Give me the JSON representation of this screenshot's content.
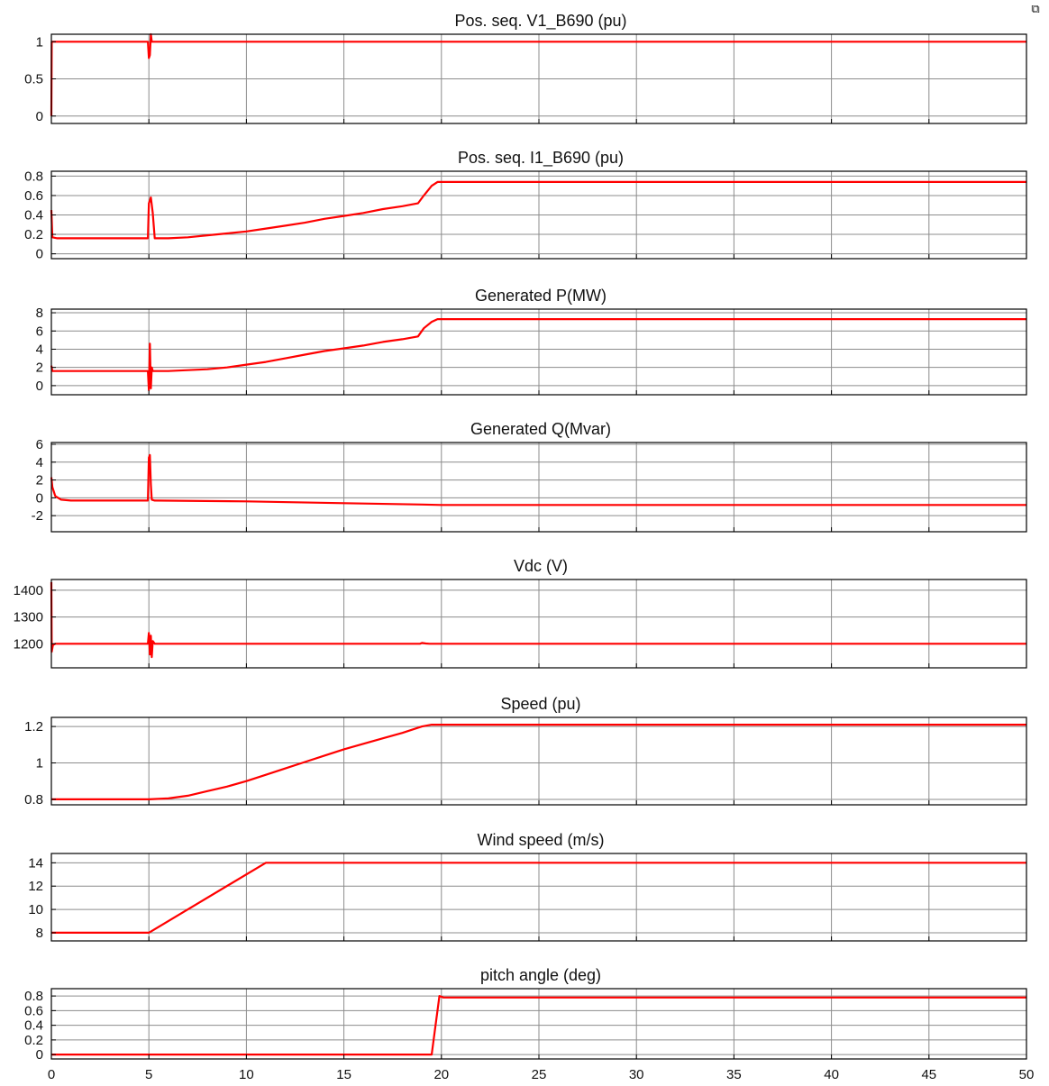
{
  "toolbar": {
    "corner_icon": "window-restore-icon"
  },
  "colors": {
    "trace": "#ff0000",
    "axis": "#000000",
    "grid": "#8c8c8c",
    "background": "#ffffff"
  },
  "chart_data": [
    {
      "type": "line",
      "title": "Pos. seq. V1_B690 (pu)",
      "xlim": [
        0,
        50
      ],
      "ylim": [
        -0.1,
        1.1
      ],
      "yticks": [
        0,
        0.5,
        1
      ],
      "ytick_labels": [
        "0",
        "0.5",
        "1"
      ],
      "xticks": [
        0,
        5,
        10,
        15,
        20,
        25,
        30,
        35,
        40,
        45,
        50
      ],
      "show_xtick_labels": false,
      "grid": true,
      "series": [
        {
          "x": [
            0,
            0.02,
            0.1,
            4.95,
            5.0,
            5.05,
            5.1,
            5.15,
            5.3,
            50
          ],
          "y": [
            0,
            1.0,
            1.0,
            1.0,
            0.78,
            0.82,
            1.1,
            1.0,
            1.0,
            1.0
          ]
        }
      ]
    },
    {
      "type": "line",
      "title": "Pos. seq. I1_B690 (pu)",
      "xlim": [
        0,
        50
      ],
      "ylim": [
        -0.05,
        0.85
      ],
      "yticks": [
        0,
        0.2,
        0.4,
        0.6,
        0.8
      ],
      "ytick_labels": [
        "0",
        "0.2",
        "0.4",
        "0.6",
        "0.8"
      ],
      "xticks": [
        0,
        5,
        10,
        15,
        20,
        25,
        30,
        35,
        40,
        45,
        50
      ],
      "show_xtick_labels": false,
      "grid": true,
      "series": [
        {
          "x": [
            0,
            0.05,
            0.3,
            4.95,
            5.0,
            5.1,
            5.2,
            5.3,
            6,
            7,
            8,
            9,
            10,
            11,
            12,
            13,
            14,
            15,
            16,
            17,
            18,
            18.8,
            19.1,
            19.5,
            19.8,
            20,
            50
          ],
          "y": [
            0.45,
            0.17,
            0.16,
            0.16,
            0.52,
            0.58,
            0.42,
            0.16,
            0.16,
            0.17,
            0.19,
            0.21,
            0.23,
            0.26,
            0.29,
            0.32,
            0.36,
            0.39,
            0.42,
            0.46,
            0.49,
            0.52,
            0.6,
            0.7,
            0.74,
            0.74,
            0.74
          ]
        }
      ]
    },
    {
      "type": "line",
      "title": "Generated P(MW)",
      "xlim": [
        0,
        50
      ],
      "ylim": [
        -1,
        8.4
      ],
      "yticks": [
        0,
        2,
        4,
        6,
        8
      ],
      "ytick_labels": [
        "0",
        "2",
        "4",
        "6",
        "8"
      ],
      "xticks": [
        0,
        5,
        10,
        15,
        20,
        25,
        30,
        35,
        40,
        45,
        50
      ],
      "show_xtick_labels": false,
      "grid": true,
      "series": [
        {
          "x": [
            0,
            0.05,
            0.3,
            4.95,
            5.0,
            5.05,
            5.1,
            5.15,
            5.2,
            5.3,
            6,
            7,
            8,
            9,
            10,
            11,
            12,
            13,
            14,
            15,
            16,
            17,
            18,
            18.8,
            19.1,
            19.5,
            19.8,
            20,
            50
          ],
          "y": [
            2.2,
            1.6,
            1.6,
            1.6,
            -0.5,
            4.6,
            -0.3,
            2.0,
            1.6,
            1.6,
            1.6,
            1.7,
            1.8,
            2.0,
            2.3,
            2.6,
            3.0,
            3.4,
            3.8,
            4.1,
            4.4,
            4.8,
            5.1,
            5.4,
            6.3,
            7.0,
            7.3,
            7.3,
            7.3
          ]
        }
      ]
    },
    {
      "type": "line",
      "title": "Generated Q(Mvar)",
      "xlim": [
        0,
        50
      ],
      "ylim": [
        -3.8,
        6.2
      ],
      "yticks": [
        -2,
        0,
        2,
        4,
        6
      ],
      "ytick_labels": [
        "-2",
        "0",
        "2",
        "4",
        "6"
      ],
      "xticks": [
        0,
        5,
        10,
        15,
        20,
        25,
        30,
        35,
        40,
        45,
        50
      ],
      "show_xtick_labels": false,
      "grid": true,
      "series": [
        {
          "x": [
            0,
            0.05,
            0.2,
            0.5,
            1.0,
            4.95,
            5.0,
            5.05,
            5.1,
            5.15,
            5.3,
            10,
            15,
            19,
            20,
            50
          ],
          "y": [
            2.3,
            1.2,
            0.2,
            -0.2,
            -0.3,
            -0.3,
            4.5,
            4.8,
            1.5,
            -0.2,
            -0.3,
            -0.4,
            -0.6,
            -0.75,
            -0.8,
            -0.8
          ]
        }
      ]
    },
    {
      "type": "line",
      "title": "Vdc (V)",
      "xlim": [
        0,
        50
      ],
      "ylim": [
        1110,
        1440
      ],
      "yticks": [
        1200,
        1300,
        1400
      ],
      "ytick_labels": [
        "1200",
        "1300",
        "1400"
      ],
      "xticks": [
        0,
        5,
        10,
        15,
        20,
        25,
        30,
        35,
        40,
        45,
        50
      ],
      "show_xtick_labels": false,
      "grid": true,
      "series": [
        {
          "x": [
            0,
            0.02,
            0.08,
            0.2,
            4.95,
            5.0,
            5.05,
            5.1,
            5.15,
            5.2,
            5.3,
            18.9,
            19.0,
            19.2,
            19.4,
            50
          ],
          "y": [
            1430,
            1170,
            1195,
            1200,
            1200,
            1240,
            1160,
            1230,
            1150,
            1210,
            1200,
            1200,
            1203,
            1201,
            1200,
            1200
          ]
        }
      ]
    },
    {
      "type": "line",
      "title": "Speed (pu)",
      "xlim": [
        0,
        50
      ],
      "ylim": [
        0.77,
        1.25
      ],
      "yticks": [
        0.8,
        1,
        1.2
      ],
      "ytick_labels": [
        "0.8",
        "1",
        "1.2"
      ],
      "xticks": [
        0,
        5,
        10,
        15,
        20,
        25,
        30,
        35,
        40,
        45,
        50
      ],
      "show_xtick_labels": false,
      "grid": true,
      "series": [
        {
          "x": [
            0,
            5,
            6,
            7,
            8,
            9,
            10,
            11,
            12,
            13,
            14,
            15,
            16,
            17,
            18,
            19,
            19.5,
            20,
            50
          ],
          "y": [
            0.8,
            0.8,
            0.805,
            0.82,
            0.845,
            0.87,
            0.9,
            0.935,
            0.97,
            1.005,
            1.04,
            1.075,
            1.105,
            1.135,
            1.165,
            1.2,
            1.21,
            1.21,
            1.21
          ]
        }
      ]
    },
    {
      "type": "line",
      "title": "Wind speed (m/s)",
      "xlim": [
        0,
        50
      ],
      "ylim": [
        7.3,
        14.8
      ],
      "yticks": [
        8,
        10,
        12,
        14
      ],
      "ytick_labels": [
        "8",
        "10",
        "12",
        "14"
      ],
      "xticks": [
        0,
        5,
        10,
        15,
        20,
        25,
        30,
        35,
        40,
        45,
        50
      ],
      "show_xtick_labels": false,
      "grid": true,
      "series": [
        {
          "x": [
            0,
            5,
            11,
            50
          ],
          "y": [
            8,
            8,
            14,
            14
          ]
        }
      ]
    },
    {
      "type": "line",
      "title": "pitch angle (deg)",
      "xlim": [
        0,
        50
      ],
      "ylim": [
        -0.06,
        0.9
      ],
      "yticks": [
        0,
        0.2,
        0.4,
        0.6,
        0.8
      ],
      "ytick_labels": [
        "0",
        "0.2",
        "0.4",
        "0.6",
        "0.8"
      ],
      "xticks": [
        0,
        5,
        10,
        15,
        20,
        25,
        30,
        35,
        40,
        45,
        50
      ],
      "xtick_labels": [
        "0",
        "5",
        "10",
        "15",
        "20",
        "25",
        "30",
        "35",
        "40",
        "45",
        "50"
      ],
      "show_xtick_labels": true,
      "grid": true,
      "series": [
        {
          "x": [
            0,
            19.5,
            19.9,
            20.1,
            50
          ],
          "y": [
            0,
            0,
            0.8,
            0.78,
            0.78
          ]
        }
      ]
    }
  ]
}
